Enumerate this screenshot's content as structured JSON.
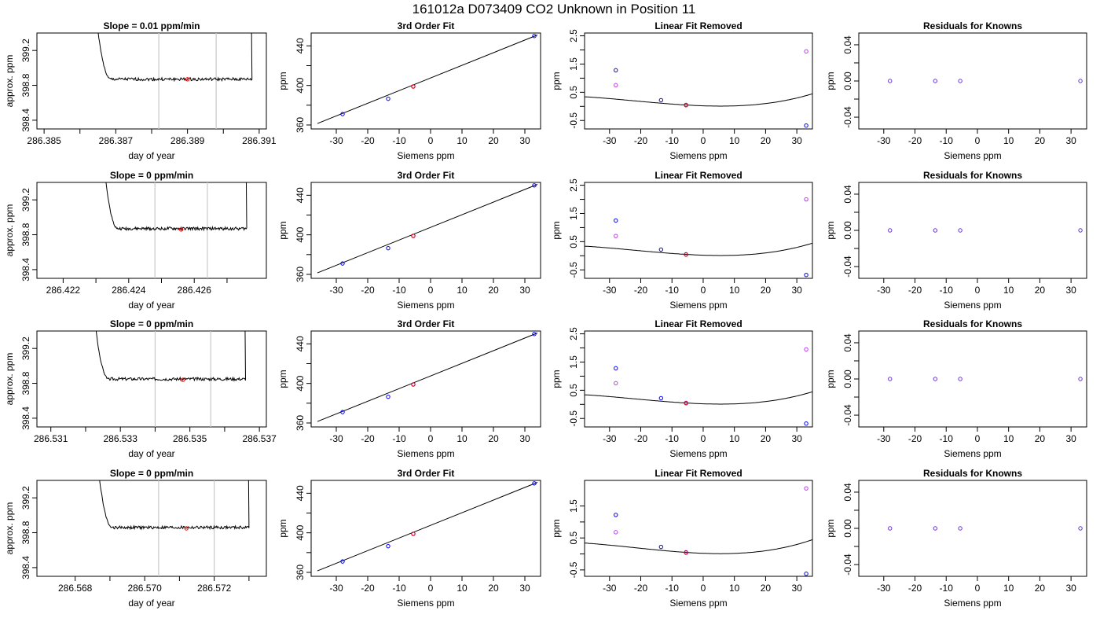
{
  "figure": {
    "title": "161012a      D073409    CO2  Unknown in Position  11"
  },
  "colors": {
    "line": "#000000",
    "axis": "#000000",
    "window": "#c8c8c8",
    "point_red": "#ff0000",
    "point_blue": "#0000ff",
    "point_magenta": "#cc33ff",
    "residual_point": "#6633cc"
  },
  "chart_data": [
    {
      "type": "line",
      "row": 1,
      "panel": "timeseries",
      "title": "Slope =  0.01  ppm/min",
      "xlabel": "day of year",
      "ylabel": "approx. ppm",
      "xlim": [
        286.3848,
        286.3912
      ],
      "ylim": [
        398.3,
        399.4
      ],
      "xticks": [
        286.385,
        286.387,
        286.389,
        286.391
      ],
      "xtick_labels": [
        "286.385",
        "286.387",
        "286.389",
        "286.391"
      ],
      "xticks_minor": [
        286.386,
        286.388,
        286.39
      ],
      "yticks": [
        398.4,
        398.8,
        399.2
      ],
      "ytick_labels": [
        "398.4",
        "398.8",
        "399.2"
      ],
      "window": [
        286.3882,
        286.3898
      ],
      "trace_start": 286.3863,
      "trace_end": 286.3908,
      "plateau_level": 398.87,
      "mean_point": [
        286.389,
        398.87
      ]
    },
    {
      "type": "scatter",
      "row": 1,
      "panel": "fit",
      "title": "3rd Order Fit",
      "xlabel": "Siemens ppm",
      "ylabel": "ppm",
      "xlim": [
        -38,
        35
      ],
      "ylim": [
        356,
        453
      ],
      "xticks": [
        -30,
        -20,
        -10,
        0,
        10,
        20,
        30
      ],
      "xtick_labels": [
        "-30",
        "-20",
        "-10",
        "0",
        "10",
        "20",
        "30"
      ],
      "yticks": [
        360,
        400,
        440
      ],
      "ytick_labels": [
        "360",
        "400",
        "440"
      ],
      "yticks_minor": [
        380,
        420
      ],
      "known_points": [
        [
          -28,
          371.0
        ],
        [
          -13.5,
          386.5
        ],
        [
          -5.5,
          399.0
        ],
        [
          33,
          450.0
        ]
      ],
      "unknown_point": [
        -5.5,
        398.9
      ],
      "fit_line": [
        [
          -36,
          361.5
        ],
        [
          34,
          451.0
        ]
      ]
    },
    {
      "type": "scatter",
      "row": 1,
      "panel": "linear_removed",
      "title": "Linear Fit Removed",
      "xlabel": "Siemens ppm",
      "ylabel": "ppm",
      "xlim": [
        -38,
        35
      ],
      "ylim": [
        -0.8,
        2.6
      ],
      "xticks": [
        -30,
        -20,
        -10,
        0,
        10,
        20,
        30
      ],
      "xtick_labels": [
        "-30",
        "-20",
        "-10",
        "0",
        "10",
        "20",
        "30"
      ],
      "yticks": [
        -0.5,
        0.5,
        1.5,
        2.5
      ],
      "ytick_labels": [
        "-0.5",
        "0.5",
        "1.5",
        "2.5"
      ],
      "yticks_minor": [
        0,
        1,
        2
      ],
      "curve_coeffs": [
        0.02,
        -0.0037,
        0.000296,
        4.5e-06
      ],
      "known_points": [
        [
          -28,
          1.28
        ],
        [
          -13.5,
          0.22
        ],
        [
          -5.5,
          0.05
        ],
        [
          33,
          -0.68
        ]
      ],
      "unknown_point": [
        -5.5,
        0.04
      ],
      "other_points": [
        [
          -28,
          0.75
        ],
        [
          33,
          1.95
        ]
      ]
    },
    {
      "type": "scatter",
      "row": 1,
      "panel": "residuals",
      "title": "Residuals for Knowns",
      "xlabel": "Siemens ppm",
      "ylabel": "ppm",
      "xlim": [
        -38,
        35
      ],
      "ylim": [
        -0.053,
        0.053
      ],
      "xticks": [
        -30,
        -20,
        -10,
        0,
        10,
        20,
        30
      ],
      "xtick_labels": [
        "-30",
        "-20",
        "-10",
        "0",
        "10",
        "20",
        "30"
      ],
      "yticks": [
        -0.04,
        0.0,
        0.04
      ],
      "ytick_labels": [
        "-0.04",
        "0.00",
        "0.04"
      ],
      "yticks_minor": [
        -0.02,
        0.02
      ],
      "points": [
        [
          -28,
          0
        ],
        [
          -13.5,
          0
        ],
        [
          -5.5,
          0
        ],
        [
          33,
          0
        ]
      ]
    },
    {
      "type": "line",
      "row": 2,
      "panel": "timeseries",
      "title": "Slope =  0  ppm/min",
      "xlabel": "day of year",
      "ylabel": "approx. ppm",
      "xlim": [
        286.4212,
        286.4282
      ],
      "ylim": [
        398.3,
        399.4
      ],
      "xticks": [
        286.422,
        286.424,
        286.426
      ],
      "xtick_labels": [
        "286.422",
        "286.424",
        "286.426"
      ],
      "xticks_minor": [
        286.423,
        286.425,
        286.427
      ],
      "yticks": [
        398.4,
        398.8,
        399.2
      ],
      "ytick_labels": [
        "398.4",
        "398.8",
        "399.2"
      ],
      "window": [
        286.4248,
        286.4264
      ],
      "trace_start": 286.4231,
      "trace_end": 286.4276,
      "plateau_level": 398.87,
      "mean_point": [
        286.4256,
        398.86
      ]
    },
    {
      "type": "scatter",
      "row": 2,
      "panel": "fit",
      "title": "3rd Order Fit",
      "xlabel": "Siemens ppm",
      "ylabel": "ppm",
      "xlim": [
        -38,
        35
      ],
      "ylim": [
        356,
        453
      ],
      "xticks": [
        -30,
        -20,
        -10,
        0,
        10,
        20,
        30
      ],
      "xtick_labels": [
        "-30",
        "-20",
        "-10",
        "0",
        "10",
        "20",
        "30"
      ],
      "yticks": [
        360,
        400,
        440
      ],
      "ytick_labels": [
        "360",
        "400",
        "440"
      ],
      "yticks_minor": [
        380,
        420
      ],
      "known_points": [
        [
          -28,
          371.0
        ],
        [
          -13.5,
          386.5
        ],
        [
          -5.5,
          399.0
        ],
        [
          33,
          450.0
        ]
      ],
      "unknown_point": [
        -5.5,
        398.9
      ],
      "fit_line": [
        [
          -36,
          361.5
        ],
        [
          34,
          451.0
        ]
      ]
    },
    {
      "type": "scatter",
      "row": 2,
      "panel": "linear_removed",
      "title": "Linear Fit Removed",
      "xlabel": "Siemens ppm",
      "ylabel": "ppm",
      "xlim": [
        -38,
        35
      ],
      "ylim": [
        -0.8,
        2.6
      ],
      "xticks": [
        -30,
        -20,
        -10,
        0,
        10,
        20,
        30
      ],
      "xtick_labels": [
        "-30",
        "-20",
        "-10",
        "0",
        "10",
        "20",
        "30"
      ],
      "yticks": [
        -0.5,
        0.5,
        1.5,
        2.5
      ],
      "ytick_labels": [
        "-0.5",
        "0.5",
        "1.5",
        "2.5"
      ],
      "yticks_minor": [
        0,
        1,
        2
      ],
      "curve_coeffs": [
        0.02,
        -0.0037,
        0.000296,
        4.5e-06
      ],
      "known_points": [
        [
          -28,
          1.25
        ],
        [
          -13.5,
          0.22
        ],
        [
          -5.5,
          0.05
        ],
        [
          33,
          -0.68
        ]
      ],
      "unknown_point": [
        -5.5,
        0.04
      ],
      "other_points": [
        [
          -28,
          0.7
        ],
        [
          33,
          2.0
        ]
      ]
    },
    {
      "type": "scatter",
      "row": 2,
      "panel": "residuals",
      "title": "Residuals for Knowns",
      "xlabel": "Siemens ppm",
      "ylabel": "ppm",
      "xlim": [
        -38,
        35
      ],
      "ylim": [
        -0.053,
        0.053
      ],
      "xticks": [
        -30,
        -20,
        -10,
        0,
        10,
        20,
        30
      ],
      "xtick_labels": [
        "-30",
        "-20",
        "-10",
        "0",
        "10",
        "20",
        "30"
      ],
      "yticks": [
        -0.04,
        0.0,
        0.04
      ],
      "ytick_labels": [
        "-0.04",
        "0.00",
        "0.04"
      ],
      "yticks_minor": [
        -0.02,
        0.02
      ],
      "points": [
        [
          -28,
          0
        ],
        [
          -13.5,
          0
        ],
        [
          -5.5,
          0
        ],
        [
          33,
          0
        ]
      ]
    },
    {
      "type": "line",
      "row": 3,
      "panel": "timeseries",
      "title": "Slope =  0  ppm/min",
      "xlabel": "day of year",
      "ylabel": "approx. ppm",
      "xlim": [
        286.5306,
        286.5372
      ],
      "ylim": [
        398.3,
        399.4
      ],
      "xticks": [
        286.531,
        286.533,
        286.535,
        286.537
      ],
      "xtick_labels": [
        "286.531",
        "286.533",
        "286.535",
        "286.537"
      ],
      "xticks_minor": [
        286.532,
        286.534,
        286.536
      ],
      "yticks": [
        398.4,
        398.8,
        399.2
      ],
      "ytick_labels": [
        "398.4",
        "398.8",
        "399.2"
      ],
      "window": [
        286.534,
        286.5356
      ],
      "trace_start": 286.5321,
      "trace_end": 286.5366,
      "plateau_level": 398.85,
      "mean_point": [
        286.5348,
        398.84
      ]
    },
    {
      "type": "scatter",
      "row": 3,
      "panel": "fit",
      "title": "3rd Order Fit",
      "xlabel": "Siemens ppm",
      "ylabel": "ppm",
      "xlim": [
        -38,
        35
      ],
      "ylim": [
        356,
        453
      ],
      "xticks": [
        -30,
        -20,
        -10,
        0,
        10,
        20,
        30
      ],
      "xtick_labels": [
        "-30",
        "-20",
        "-10",
        "0",
        "10",
        "20",
        "30"
      ],
      "yticks": [
        360,
        400,
        440
      ],
      "ytick_labels": [
        "360",
        "400",
        "440"
      ],
      "yticks_minor": [
        380,
        420
      ],
      "known_points": [
        [
          -28,
          371.0
        ],
        [
          -13.5,
          386.5
        ],
        [
          -5.5,
          399.0
        ],
        [
          33,
          450.0
        ]
      ],
      "unknown_point": [
        -5.5,
        398.9
      ],
      "fit_line": [
        [
          -36,
          361.5
        ],
        [
          34,
          451.0
        ]
      ]
    },
    {
      "type": "scatter",
      "row": 3,
      "panel": "linear_removed",
      "title": "Linear Fit Removed",
      "xlabel": "Siemens ppm",
      "ylabel": "ppm",
      "xlim": [
        -38,
        35
      ],
      "ylim": [
        -0.8,
        2.6
      ],
      "xticks": [
        -30,
        -20,
        -10,
        0,
        10,
        20,
        30
      ],
      "xtick_labels": [
        "-30",
        "-20",
        "-10",
        "0",
        "10",
        "20",
        "30"
      ],
      "yticks": [
        -0.5,
        0.5,
        1.5,
        2.5
      ],
      "ytick_labels": [
        "-0.5",
        "0.5",
        "1.5",
        "2.5"
      ],
      "yticks_minor": [
        0,
        1,
        2
      ],
      "curve_coeffs": [
        0.02,
        -0.0037,
        0.000296,
        4.5e-06
      ],
      "known_points": [
        [
          -28,
          1.28
        ],
        [
          -13.5,
          0.22
        ],
        [
          -5.5,
          0.05
        ],
        [
          33,
          -0.68
        ]
      ],
      "unknown_point": [
        -5.5,
        0.04
      ],
      "other_points": [
        [
          -28,
          0.75
        ],
        [
          33,
          1.95
        ]
      ]
    },
    {
      "type": "scatter",
      "row": 3,
      "panel": "residuals",
      "title": "Residuals for Knowns",
      "xlabel": "Siemens ppm",
      "ylabel": "ppm",
      "xlim": [
        -38,
        35
      ],
      "ylim": [
        -0.053,
        0.053
      ],
      "xticks": [
        -30,
        -20,
        -10,
        0,
        10,
        20,
        30
      ],
      "xtick_labels": [
        "-30",
        "-20",
        "-10",
        "0",
        "10",
        "20",
        "30"
      ],
      "yticks": [
        -0.04,
        0.0,
        0.04
      ],
      "ytick_labels": [
        "-0.04",
        "0.00",
        "0.04"
      ],
      "yticks_minor": [
        -0.02,
        0.02
      ],
      "points": [
        [
          -28,
          0
        ],
        [
          -13.5,
          0
        ],
        [
          -5.5,
          0
        ],
        [
          33,
          0
        ]
      ]
    },
    {
      "type": "line",
      "row": 4,
      "panel": "timeseries",
      "title": "Slope =  0  ppm/min",
      "xlabel": "day of year",
      "ylabel": "approx. ppm",
      "xlim": [
        286.5669,
        286.5735
      ],
      "ylim": [
        398.3,
        399.4
      ],
      "xticks": [
        286.568,
        286.57,
        286.572
      ],
      "xtick_labels": [
        "286.568",
        "286.570",
        "286.572"
      ],
      "xticks_minor": [
        286.569,
        286.571,
        286.573
      ],
      "yticks": [
        398.4,
        398.8,
        399.2
      ],
      "ytick_labels": [
        "398.4",
        "398.8",
        "399.2"
      ],
      "window": [
        286.5704,
        286.572
      ],
      "trace_start": 286.5685,
      "trace_end": 286.573,
      "plateau_level": 398.86,
      "mean_point": [
        286.5712,
        398.85
      ]
    },
    {
      "type": "scatter",
      "row": 4,
      "panel": "fit",
      "title": "3rd Order Fit",
      "xlabel": "Siemens ppm",
      "ylabel": "ppm",
      "xlim": [
        -38,
        35
      ],
      "ylim": [
        356,
        453
      ],
      "xticks": [
        -30,
        -20,
        -10,
        0,
        10,
        20,
        30
      ],
      "xtick_labels": [
        "-30",
        "-20",
        "-10",
        "0",
        "10",
        "20",
        "30"
      ],
      "yticks": [
        360,
        400,
        440
      ],
      "ytick_labels": [
        "360",
        "400",
        "440"
      ],
      "yticks_minor": [
        380,
        420
      ],
      "known_points": [
        [
          -28,
          371.0
        ],
        [
          -13.5,
          386.5
        ],
        [
          -5.5,
          399.0
        ],
        [
          33,
          450.0
        ]
      ],
      "unknown_point": [
        -5.5,
        398.9
      ],
      "fit_line": [
        [
          -36,
          361.5
        ],
        [
          34,
          451.0
        ]
      ]
    },
    {
      "type": "scatter",
      "row": 4,
      "panel": "linear_removed",
      "title": "Linear Fit Removed",
      "xlabel": "Siemens ppm",
      "ylabel": "ppm",
      "xlim": [
        -38,
        35
      ],
      "ylim": [
        -0.7,
        2.3
      ],
      "xticks": [
        -30,
        -20,
        -10,
        0,
        10,
        20,
        30
      ],
      "xtick_labels": [
        "-30",
        "-20",
        "-10",
        "0",
        "10",
        "20",
        "30"
      ],
      "yticks": [
        -0.5,
        0.5,
        1.5
      ],
      "ytick_labels": [
        "-0.5",
        "0.5",
        "1.5"
      ],
      "yticks_minor": [
        0,
        1
      ],
      "curve_coeffs": [
        0.02,
        -0.0037,
        0.000296,
        4.5e-06
      ],
      "known_points": [
        [
          -28,
          1.22
        ],
        [
          -13.5,
          0.22
        ],
        [
          -5.5,
          0.05
        ],
        [
          33,
          -0.62
        ]
      ],
      "unknown_point": [
        -5.5,
        0.04
      ],
      "other_points": [
        [
          -28,
          0.68
        ],
        [
          33,
          2.05
        ]
      ]
    },
    {
      "type": "scatter",
      "row": 4,
      "panel": "residuals",
      "title": "Residuals for Knowns",
      "xlabel": "Siemens ppm",
      "ylabel": "ppm",
      "xlim": [
        -38,
        35
      ],
      "ylim": [
        -0.053,
        0.053
      ],
      "xticks": [
        -30,
        -20,
        -10,
        0,
        10,
        20,
        30
      ],
      "xtick_labels": [
        "-30",
        "-20",
        "-10",
        "0",
        "10",
        "20",
        "30"
      ],
      "yticks": [
        -0.04,
        0.0,
        0.04
      ],
      "ytick_labels": [
        "-0.04",
        "0.00",
        "0.04"
      ],
      "yticks_minor": [
        -0.02,
        0.02
      ],
      "points": [
        [
          -28,
          0
        ],
        [
          -13.5,
          0
        ],
        [
          -5.5,
          0
        ],
        [
          33,
          0
        ]
      ]
    }
  ]
}
